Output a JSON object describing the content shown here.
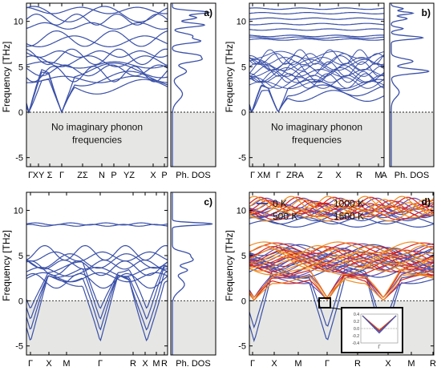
{
  "figure": {
    "ylabel": "Frequency [THz]",
    "dos_label": "Ph. DOS",
    "no_imag_text_line1": "No imaginary phonon",
    "no_imag_text_line2": "frequencies"
  },
  "colors": {
    "band": "#3a50a8",
    "shade": "#e6e6e4",
    "axis": "#000000",
    "t0": "#3a50a8",
    "t500": "#6a4aa8",
    "t1000": "#d8231f",
    "t1500": "#f08a1e"
  },
  "chart_data": [
    {
      "id": "a",
      "type": "line",
      "panel_label": "a)",
      "ylim": [
        -6,
        12
      ],
      "yticks": [
        -5,
        0,
        5,
        10
      ],
      "x_ticks": [
        "Γ",
        "XY",
        "Σ",
        "Γ",
        "ZΣ",
        "N",
        "P",
        "YZ",
        "X",
        "P"
      ],
      "negative_region_shaded": true,
      "has_imaginary": false
    },
    {
      "id": "b",
      "type": "line",
      "panel_label": "b)",
      "ylim": [
        -6,
        12
      ],
      "yticks": [
        -5,
        0,
        5,
        10
      ],
      "x_ticks": [
        "Γ",
        "XM",
        "Γ",
        "ZRA",
        "Z",
        "X",
        "R",
        "M",
        "A"
      ],
      "negative_region_shaded": true,
      "has_imaginary": false
    },
    {
      "id": "c",
      "type": "line",
      "panel_label": "c)",
      "ylim": [
        -6,
        12
      ],
      "yticks": [
        -5,
        0,
        5,
        10
      ],
      "x_ticks": [
        "Γ",
        "X",
        "M",
        "Γ",
        "R",
        "X",
        "M",
        "R"
      ],
      "negative_region_shaded": true,
      "has_imaginary": true
    },
    {
      "id": "d",
      "type": "line",
      "panel_label": "d)",
      "ylim": [
        -6,
        12
      ],
      "yticks": [
        -5,
        0,
        5,
        10
      ],
      "x_ticks": [
        "Γ",
        "X",
        "M",
        "Γ",
        "R",
        "X",
        "M",
        "R"
      ],
      "negative_region_shaded": true,
      "has_imaginary": true,
      "legend": [
        {
          "label": "0 K",
          "color": "#3a50a8"
        },
        {
          "label": "1000 K",
          "color": "#d8231f"
        },
        {
          "label": "500 K",
          "color": "#6a4aa8"
        },
        {
          "label": "1500 K",
          "color": "#f08a1e"
        }
      ],
      "inset": {
        "yticks": [
          "0.4",
          "0.2",
          "0.0",
          "-0.2",
          "-0.4"
        ],
        "xtick": "Γ"
      }
    }
  ]
}
